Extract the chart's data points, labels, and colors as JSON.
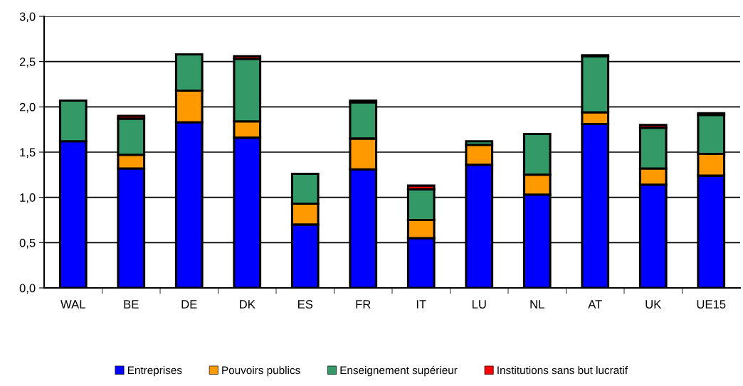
{
  "chart_data": {
    "type": "bar",
    "stacked": true,
    "categories": [
      "WAL",
      "BE",
      "DE",
      "DK",
      "ES",
      "FR",
      "IT",
      "LU",
      "NL",
      "AT",
      "UK",
      "UE15"
    ],
    "series": [
      {
        "name": "Entreprises",
        "color": "#0000ff",
        "values": [
          1.62,
          1.32,
          1.83,
          1.66,
          0.7,
          1.31,
          0.55,
          1.36,
          1.03,
          1.81,
          1.14,
          1.24
        ]
      },
      {
        "name": "Pouvoirs publics",
        "color": "#ff9900",
        "values": [
          null,
          0.15,
          0.35,
          0.18,
          0.23,
          0.34,
          0.2,
          0.22,
          0.22,
          0.13,
          0.18,
          0.24
        ]
      },
      {
        "name": "Enseignement supérieur",
        "color": "#339966",
        "values": [
          0.45,
          0.4,
          0.4,
          0.69,
          0.33,
          0.4,
          0.34,
          0.04,
          0.45,
          0.62,
          0.45,
          0.43
        ]
      },
      {
        "name": "Institutions sans but lucratif",
        "color": "#ff0000",
        "values": [
          null,
          0.03,
          null,
          0.03,
          null,
          0.02,
          0.04,
          null,
          null,
          0.01,
          0.03,
          0.02
        ]
      }
    ],
    "ylim": [
      0,
      3.0
    ],
    "yticks": [
      {
        "value": 0,
        "label": "0,0"
      },
      {
        "value": 0.5,
        "label": "0,5"
      },
      {
        "value": 1.0,
        "label": "1,0"
      },
      {
        "value": 1.5,
        "label": "1,5"
      },
      {
        "value": 2.0,
        "label": "2,0"
      },
      {
        "value": 2.5,
        "label": "2,5"
      },
      {
        "value": 3.0,
        "label": "3,0"
      }
    ],
    "grid": "y",
    "legend": "bottom"
  }
}
